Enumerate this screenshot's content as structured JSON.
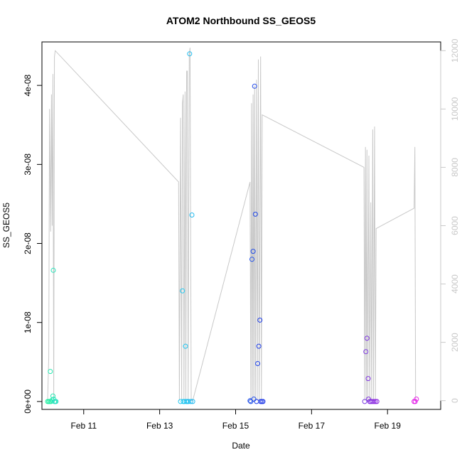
{
  "chart_data": {
    "type": "scatter",
    "title": "ATOM2 Northbound SS_GEOS5",
    "xlabel": "Date",
    "ylabel": "SS_GEOS5",
    "x_ticks": [
      {
        "label": "Feb 11",
        "value": 11
      },
      {
        "label": "Feb 13",
        "value": 13
      },
      {
        "label": "Feb 15",
        "value": 15
      },
      {
        "label": "Feb 17",
        "value": 17
      },
      {
        "label": "Feb 19",
        "value": 19
      }
    ],
    "xlim": [
      9.9,
      20.4
    ],
    "ylim": [
      -1e-09,
      4.55e-08
    ],
    "y_ticks": [
      {
        "label": "0e+00",
        "value": 0
      },
      {
        "label": "1e-08",
        "value": 1e-08
      },
      {
        "label": "2e-08",
        "value": 2e-08
      },
      {
        "label": "3e-08",
        "value": 3e-08
      },
      {
        "label": "4e-08",
        "value": 4e-08
      }
    ],
    "y2lim": [
      -300,
      12300
    ],
    "y2_ticks": [
      {
        "label": "0",
        "value": 0
      },
      {
        "label": "2000",
        "value": 2000
      },
      {
        "label": "4000",
        "value": 4000
      },
      {
        "label": "6000",
        "value": 6000
      },
      {
        "label": "8000",
        "value": 8000
      },
      {
        "label": "10000",
        "value": 10000
      },
      {
        "label": "12000",
        "value": 12000
      }
    ],
    "colors": {
      "altitude_line": "#c8c8c8",
      "axis": "#000000",
      "right_axis": "#c8c8c8"
    },
    "points": [
      {
        "x": 10.12,
        "y": 3.8e-09,
        "color": "#28e8b0"
      },
      {
        "x": 10.2,
        "y": 1.66e-08,
        "color": "#2ae6bc"
      },
      {
        "x": 10.05,
        "y": 0,
        "color": "#20f0a0"
      },
      {
        "x": 10.08,
        "y": 0,
        "color": "#20f0a0"
      },
      {
        "x": 10.11,
        "y": 0,
        "color": "#22eea6"
      },
      {
        "x": 10.14,
        "y": 0,
        "color": "#24eca8"
      },
      {
        "x": 10.17,
        "y": 2e-10,
        "color": "#26eaae"
      },
      {
        "x": 10.19,
        "y": 7e-10,
        "color": "#28e8b4"
      },
      {
        "x": 10.21,
        "y": 3e-10,
        "color": "#2ae6b8"
      },
      {
        "x": 10.23,
        "y": 0,
        "color": "#2ce4bc"
      },
      {
        "x": 10.25,
        "y": 0,
        "color": "#2ee2c0"
      },
      {
        "x": 10.27,
        "y": 0,
        "color": "#30e0c4"
      },
      {
        "x": 13.55,
        "y": 0,
        "color": "#20c8f0"
      },
      {
        "x": 13.6,
        "y": 1.4e-08,
        "color": "#20c8f0"
      },
      {
        "x": 13.62,
        "y": 0,
        "color": "#20c8f0"
      },
      {
        "x": 13.65,
        "y": 0,
        "color": "#20c6f0"
      },
      {
        "x": 13.68,
        "y": 7e-09,
        "color": "#20c4f0"
      },
      {
        "x": 13.7,
        "y": 0,
        "color": "#20c4f0"
      },
      {
        "x": 13.73,
        "y": 0,
        "color": "#20c2f0"
      },
      {
        "x": 13.76,
        "y": 0,
        "color": "#20c0f0"
      },
      {
        "x": 13.79,
        "y": 4.4e-08,
        "color": "#20bef0"
      },
      {
        "x": 13.82,
        "y": 0,
        "color": "#20bcf0"
      },
      {
        "x": 13.85,
        "y": 2.36e-08,
        "color": "#20baf0"
      },
      {
        "x": 13.87,
        "y": 0,
        "color": "#20b8f0"
      },
      {
        "x": 15.38,
        "y": 1e-10,
        "color": "#2050e8"
      },
      {
        "x": 15.4,
        "y": 0,
        "color": "#2050e8"
      },
      {
        "x": 15.43,
        "y": 1.8e-08,
        "color": "#2050e8"
      },
      {
        "x": 15.46,
        "y": 1.9e-08,
        "color": "#204ce8"
      },
      {
        "x": 15.48,
        "y": 3e-10,
        "color": "#204ce8"
      },
      {
        "x": 15.5,
        "y": 3.99e-08,
        "color": "#2048e8"
      },
      {
        "x": 15.52,
        "y": 2.37e-08,
        "color": "#2048e8"
      },
      {
        "x": 15.55,
        "y": 0,
        "color": "#2044e8"
      },
      {
        "x": 15.58,
        "y": 4.8e-09,
        "color": "#2044e8"
      },
      {
        "x": 15.61,
        "y": 7e-09,
        "color": "#2040e8"
      },
      {
        "x": 15.64,
        "y": 1.03e-08,
        "color": "#2040e8"
      },
      {
        "x": 15.66,
        "y": 0,
        "color": "#203ce8"
      },
      {
        "x": 15.69,
        "y": 0,
        "color": "#203ce8"
      },
      {
        "x": 15.72,
        "y": 0,
        "color": "#2038e8"
      },
      {
        "x": 18.4,
        "y": 0,
        "color": "#7a3ae0"
      },
      {
        "x": 18.43,
        "y": 6.3e-09,
        "color": "#7c38e0"
      },
      {
        "x": 18.46,
        "y": 8e-09,
        "color": "#7e36e0"
      },
      {
        "x": 18.49,
        "y": 2.9e-09,
        "color": "#8034e0"
      },
      {
        "x": 18.5,
        "y": 3e-10,
        "color": "#8234e0"
      },
      {
        "x": 18.53,
        "y": 0,
        "color": "#8432e0"
      },
      {
        "x": 18.56,
        "y": 0,
        "color": "#8630e0"
      },
      {
        "x": 18.6,
        "y": 0,
        "color": "#882ee0"
      },
      {
        "x": 18.64,
        "y": 0,
        "color": "#8a2ce0"
      },
      {
        "x": 18.68,
        "y": 0,
        "color": "#8c2ae0"
      },
      {
        "x": 18.72,
        "y": 0,
        "color": "#8e28e0"
      },
      {
        "x": 19.7,
        "y": 0,
        "color": "#e020e8"
      },
      {
        "x": 19.73,
        "y": 0,
        "color": "#e420e8"
      },
      {
        "x": 19.76,
        "y": 3e-10,
        "color": "#e820e8"
      }
    ],
    "altitude_line": [
      [
        10.05,
        0
      ],
      [
        10.08,
        1500
      ],
      [
        10.1,
        10000
      ],
      [
        10.13,
        5800
      ],
      [
        10.15,
        10500
      ],
      [
        10.17,
        6000
      ],
      [
        10.19,
        11200
      ],
      [
        10.21,
        0
      ],
      [
        10.23,
        11800
      ],
      [
        10.25,
        12000
      ],
      [
        13.5,
        7500
      ],
      [
        13.52,
        0
      ],
      [
        13.55,
        9700
      ],
      [
        13.58,
        0
      ],
      [
        13.6,
        10200
      ],
      [
        13.62,
        10500
      ],
      [
        13.64,
        0
      ],
      [
        13.67,
        10600
      ],
      [
        13.69,
        0
      ],
      [
        13.71,
        11300
      ],
      [
        13.73,
        11300
      ],
      [
        13.75,
        0
      ],
      [
        13.78,
        11900
      ],
      [
        13.8,
        12100
      ],
      [
        13.83,
        0
      ],
      [
        13.87,
        0
      ],
      [
        15.38,
        7500
      ],
      [
        15.4,
        0
      ],
      [
        15.42,
        10200
      ],
      [
        15.44,
        0
      ],
      [
        15.46,
        10500
      ],
      [
        15.48,
        0
      ],
      [
        15.5,
        10800
      ],
      [
        15.52,
        0
      ],
      [
        15.55,
        11000
      ],
      [
        15.57,
        0
      ],
      [
        15.6,
        11700
      ],
      [
        15.62,
        0
      ],
      [
        15.66,
        11800
      ],
      [
        15.68,
        0
      ],
      [
        15.7,
        9800
      ],
      [
        18.38,
        8000
      ],
      [
        18.4,
        0
      ],
      [
        18.42,
        8700
      ],
      [
        18.44,
        0
      ],
      [
        18.46,
        8600
      ],
      [
        18.48,
        0
      ],
      [
        18.51,
        8400
      ],
      [
        18.53,
        0
      ],
      [
        18.56,
        6800
      ],
      [
        18.58,
        0
      ],
      [
        18.61,
        9300
      ],
      [
        18.63,
        0
      ],
      [
        18.66,
        9400
      ],
      [
        18.68,
        0
      ],
      [
        18.7,
        5900
      ],
      [
        19.7,
        6600
      ],
      [
        19.72,
        8700
      ],
      [
        19.74,
        0
      ]
    ]
  }
}
